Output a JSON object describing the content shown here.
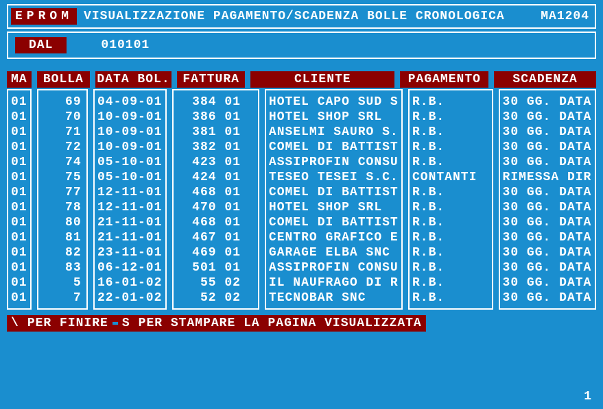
{
  "colors": {
    "background": "#1a8ecf",
    "accent": "#8b0000",
    "text": "#ffffff",
    "border": "#ffffff"
  },
  "header": {
    "badge": "EPROM",
    "title": "VISUALIZZAZIONE PAGAMENTO/SCADENZA BOLLE CRONOLOGICA",
    "code": "MA1204"
  },
  "filter": {
    "label": "DAL",
    "value": "010101"
  },
  "columns": {
    "ma": "MA",
    "bolla": "BOLLA",
    "data": "DATA BOL.",
    "fattura": "FATTURA",
    "cliente": "CLIENTE",
    "pagamento": "PAGAMENTO",
    "scadenza": "SCADENZA"
  },
  "rows": [
    {
      "ma": "01",
      "bolla": "69",
      "data": "04-09-01",
      "fatt": "384",
      "sub": "01",
      "cliente": "HOTEL CAPO SUD S",
      "pag": "R.B.",
      "scad": "30 GG. DATA"
    },
    {
      "ma": "01",
      "bolla": "70",
      "data": "10-09-01",
      "fatt": "386",
      "sub": "01",
      "cliente": "HOTEL SHOP SRL",
      "pag": "R.B.",
      "scad": "30 GG. DATA"
    },
    {
      "ma": "01",
      "bolla": "71",
      "data": "10-09-01",
      "fatt": "381",
      "sub": "01",
      "cliente": "ANSELMI SAURO S.",
      "pag": "R.B.",
      "scad": "30 GG. DATA"
    },
    {
      "ma": "01",
      "bolla": "72",
      "data": "10-09-01",
      "fatt": "382",
      "sub": "01",
      "cliente": "COMEL DI BATTIST",
      "pag": "R.B.",
      "scad": "30 GG. DATA"
    },
    {
      "ma": "01",
      "bolla": "74",
      "data": "05-10-01",
      "fatt": "423",
      "sub": "01",
      "cliente": "ASSIPROFIN CONSU",
      "pag": "R.B.",
      "scad": "30 GG. DATA"
    },
    {
      "ma": "01",
      "bolla": "75",
      "data": "05-10-01",
      "fatt": "424",
      "sub": "01",
      "cliente": "TESEO TESEI S.C.",
      "pag": "CONTANTI",
      "scad": "RIMESSA DIR"
    },
    {
      "ma": "01",
      "bolla": "77",
      "data": "12-11-01",
      "fatt": "468",
      "sub": "01",
      "cliente": "COMEL DI BATTIST",
      "pag": "R.B.",
      "scad": "30 GG. DATA"
    },
    {
      "ma": "01",
      "bolla": "78",
      "data": "12-11-01",
      "fatt": "470",
      "sub": "01",
      "cliente": "HOTEL SHOP SRL",
      "pag": "R.B.",
      "scad": "30 GG. DATA"
    },
    {
      "ma": "01",
      "bolla": "80",
      "data": "21-11-01",
      "fatt": "468",
      "sub": "01",
      "cliente": "COMEL DI BATTIST",
      "pag": "R.B.",
      "scad": "30 GG. DATA"
    },
    {
      "ma": "01",
      "bolla": "81",
      "data": "21-11-01",
      "fatt": "467",
      "sub": "01",
      "cliente": "CENTRO GRAFICO E",
      "pag": "R.B.",
      "scad": "30 GG. DATA"
    },
    {
      "ma": "01",
      "bolla": "82",
      "data": "23-11-01",
      "fatt": "469",
      "sub": "01",
      "cliente": "GARAGE ELBA SNC",
      "pag": "R.B.",
      "scad": "30 GG. DATA"
    },
    {
      "ma": "01",
      "bolla": "83",
      "data": "06-12-01",
      "fatt": "501",
      "sub": "01",
      "cliente": "ASSIPROFIN CONSU",
      "pag": "R.B.",
      "scad": "30 GG. DATA"
    },
    {
      "ma": "01",
      "bolla": "5",
      "data": "16-01-02",
      "fatt": "55",
      "sub": "02",
      "cliente": "IL NAUFRAGO DI R",
      "pag": "R.B.",
      "scad": "30 GG. DATA"
    },
    {
      "ma": "01",
      "bolla": "7",
      "data": "22-01-02",
      "fatt": "52",
      "sub": "02",
      "cliente": "TECNOBAR SNC",
      "pag": "R.B.",
      "scad": "30 GG. DATA"
    }
  ],
  "footer": {
    "key1": "\\",
    "label1": "PER FINIRE",
    "key2": "S",
    "label2": "PER STAMPARE LA PAGINA VISUALIZZATA"
  },
  "page": "1"
}
